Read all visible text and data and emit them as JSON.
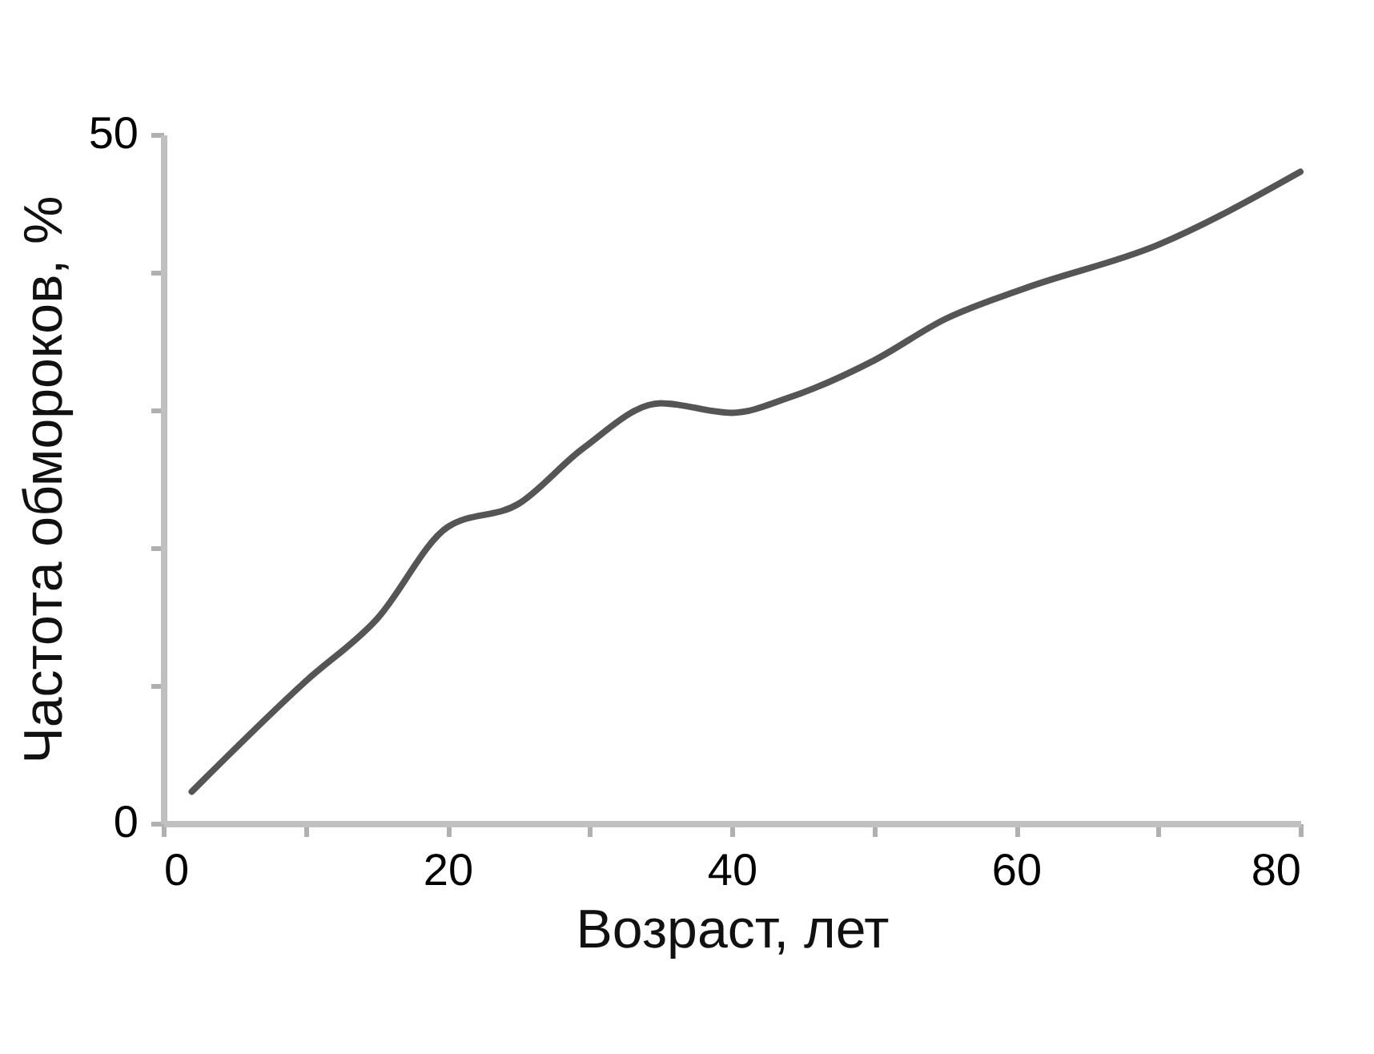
{
  "chart_data": {
    "type": "line",
    "xlabel": "Возраст, лет",
    "ylabel": "Частота обмороков, %",
    "x": [
      2,
      10,
      15,
      20,
      25,
      29.5,
      35,
      40,
      44,
      50,
      55,
      60.5,
      70,
      80
    ],
    "series": [
      {
        "color": "#555555",
        "values": [
          2.3,
          10.3,
          14.8,
          21.5,
          23.2,
          27.2,
          30.5,
          29.8,
          30.9,
          33.6,
          36.6,
          38.8,
          42,
          47.3
        ]
      }
    ],
    "xlim": [
      0,
      80
    ],
    "xticks": [
      0,
      {
        "value": 10,
        "label": null
      },
      20,
      {
        "value": 30,
        "label": null
      },
      40,
      {
        "value": 50,
        "label": null
      },
      60,
      {
        "value": 70,
        "label": null
      },
      80
    ],
    "ylim": [
      0,
      50
    ],
    "yticks": [
      0,
      {
        "value": 10,
        "label": null
      },
      {
        "value": 20,
        "label": null
      },
      {
        "value": 30,
        "label": null
      },
      {
        "value": 40,
        "label": null
      },
      50
    ],
    "grid": false,
    "marker": "none",
    "line_style": "solid"
  }
}
